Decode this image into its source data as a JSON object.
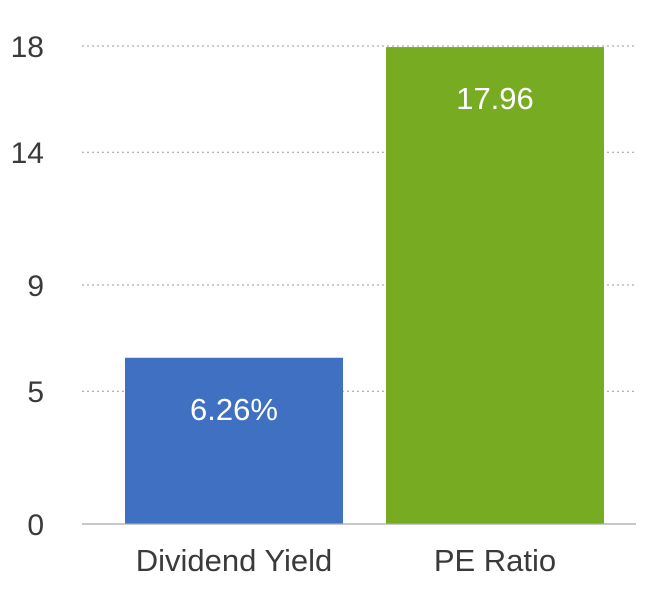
{
  "chart_data": {
    "type": "bar",
    "categories": [
      "Dividend Yield",
      "PE Ratio"
    ],
    "values": [
      6.26,
      17.96
    ],
    "data_labels": [
      "6.26%",
      "17.96"
    ],
    "colors": [
      "#3f70c1",
      "#76ab22"
    ],
    "yticks": [
      0,
      5,
      9,
      14,
      18
    ],
    "ylim": [
      0,
      18
    ],
    "grid": true,
    "gridline_style": "dotted",
    "legend": "none",
    "title": "",
    "xlabel": "",
    "ylabel": ""
  }
}
